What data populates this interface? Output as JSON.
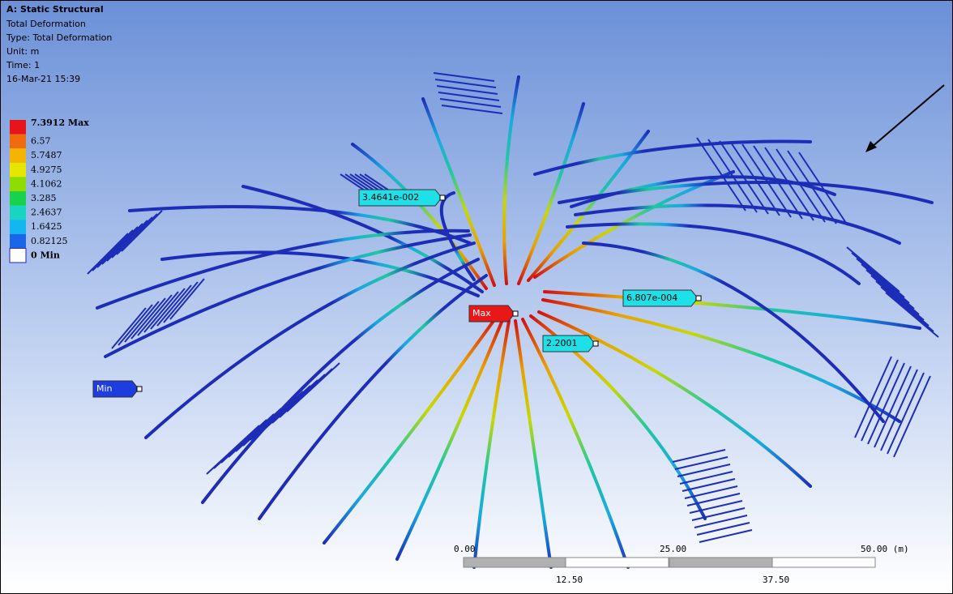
{
  "header": {
    "title": "A: Static Structural",
    "lines": [
      "Total Deformation",
      "Type: Total Deformation",
      "Unit: m",
      "Time: 1",
      "16-Mar-21 15:39"
    ]
  },
  "legend": {
    "items": [
      {
        "label": "7.3912 Max",
        "color": "#e8141b"
      },
      {
        "label": "6.57",
        "color": "#f06a0e"
      },
      {
        "label": "5.7487",
        "color": "#f5b400"
      },
      {
        "label": "4.9275",
        "color": "#e6e600"
      },
      {
        "label": "4.1062",
        "color": "#8fdc00"
      },
      {
        "label": "3.285",
        "color": "#18d24a"
      },
      {
        "label": "2.4637",
        "color": "#19d5c0"
      },
      {
        "label": "1.6425",
        "color": "#12b6f0"
      },
      {
        "label": "0.82125",
        "color": "#1a66e8"
      },
      {
        "label": "0 Min",
        "color": "#1d1ddb"
      }
    ]
  },
  "probes": [
    {
      "label": "3.4641e-002"
    },
    {
      "label": "6.807e-004"
    },
    {
      "label": "Max"
    },
    {
      "label": "2.2001"
    },
    {
      "label": "Min"
    }
  ],
  "scale_bar": {
    "top_labels": [
      "0.00",
      "25.00",
      "50.00 (m)"
    ],
    "bottom_labels": [
      "12.50",
      "37.50"
    ]
  }
}
